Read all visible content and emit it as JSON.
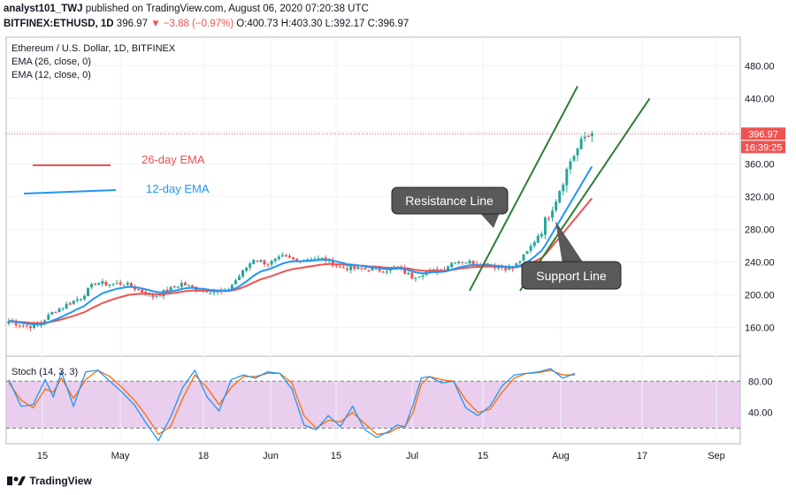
{
  "header": {
    "publisher": "analyst101_TWJ",
    "published_text": "published on TradingView.com, August 06, 2020 07:20:38 UTC",
    "symbol": "BITFINEX:ETHUSD, 1D",
    "last": "396.97",
    "change": "▼ −3.88 (−0.97%)",
    "ohlc": "O:400.73 H:403.30 L:392.17 C:396.97"
  },
  "legend": {
    "title": "Ethereum / U.S. Dollar, 1D, BITFINEX",
    "ema26": "EMA (26, close, 0)",
    "ema12": "EMA (12, close, 0)"
  },
  "annotations": {
    "ema26_label": "26-day EMA",
    "ema12_label": "12-day EMA",
    "resistance": "Resistance Line",
    "support": "Support Line"
  },
  "price_tag": {
    "price": "396.97",
    "countdown": "16:39:25"
  },
  "stoch": {
    "label": "Stoch (14, 3, 3)"
  },
  "footer": {
    "brand": "TradingView"
  },
  "colors": {
    "up": "#26a69a",
    "down": "#ef5350",
    "ema26": "#ef5350",
    "ema12": "#2196f3",
    "trend": "#2e7d32",
    "stoch_k": "#2196f3",
    "stoch_d": "#ff6d00",
    "stoch_band": "#e1bee7"
  },
  "chart_data": [
    {
      "type": "candlestick",
      "title": "Ethereum / U.S. Dollar, 1D, BITFINEX",
      "x_ticks": [
        "15",
        "May",
        "18",
        "Jun",
        "15",
        "Jul",
        "15",
        "Aug",
        "17",
        "Sep"
      ],
      "y_ticks": [
        160,
        200,
        240,
        280,
        320,
        360,
        400,
        440,
        480
      ],
      "ylim": [
        125,
        515
      ],
      "last_price": 396.97,
      "waypoints": [
        [
          0,
          168
        ],
        [
          4,
          162
        ],
        [
          8,
          162
        ],
        [
          12,
          178
        ],
        [
          16,
          188
        ],
        [
          20,
          197
        ],
        [
          24,
          215
        ],
        [
          28,
          213
        ],
        [
          32,
          214
        ],
        [
          36,
          206
        ],
        [
          40,
          198
        ],
        [
          44,
          205
        ],
        [
          48,
          214
        ],
        [
          52,
          207
        ],
        [
          56,
          205
        ],
        [
          60,
          202
        ],
        [
          64,
          223
        ],
        [
          68,
          244
        ],
        [
          72,
          238
        ],
        [
          76,
          246
        ],
        [
          80,
          242
        ],
        [
          84,
          245
        ],
        [
          88,
          243
        ],
        [
          92,
          234
        ],
        [
          96,
          232
        ],
        [
          100,
          231
        ],
        [
          104,
          230
        ],
        [
          108,
          233
        ],
        [
          112,
          222
        ],
        [
          116,
          228
        ],
        [
          120,
          230
        ],
        [
          124,
          242
        ],
        [
          128,
          240
        ],
        [
          132,
          238
        ],
        [
          136,
          234
        ],
        [
          140,
          232
        ],
        [
          144,
          252
        ],
        [
          148,
          280
        ],
        [
          152,
          318
        ],
        [
          156,
          364
        ],
        [
          160,
          393
        ],
        [
          162,
          397
        ]
      ],
      "ema26_end": 318,
      "ema12_end": 357,
      "trend_lines": [
        {
          "name": "resistance",
          "from": [
            128,
            205
          ],
          "to": [
            158,
            455
          ]
        },
        {
          "name": "support",
          "from": [
            142,
            205
          ],
          "to": [
            178,
            440
          ]
        }
      ]
    },
    {
      "type": "line",
      "title": "Stoch (14, 3, 3)",
      "y_ticks": [
        40,
        80
      ],
      "ylim": [
        0,
        112
      ],
      "band": [
        20,
        80
      ],
      "series_k_waypoints": [
        [
          0,
          82
        ],
        [
          3,
          48
        ],
        [
          6,
          50
        ],
        [
          9,
          82
        ],
        [
          11,
          60
        ],
        [
          13,
          92
        ],
        [
          16,
          48
        ],
        [
          19,
          92
        ],
        [
          22,
          94
        ],
        [
          25,
          80
        ],
        [
          28,
          66
        ],
        [
          31,
          50
        ],
        [
          34,
          26
        ],
        [
          37,
          4
        ],
        [
          40,
          34
        ],
        [
          43,
          72
        ],
        [
          46,
          94
        ],
        [
          49,
          60
        ],
        [
          52,
          42
        ],
        [
          55,
          82
        ],
        [
          58,
          88
        ],
        [
          61,
          84
        ],
        [
          64,
          92
        ],
        [
          67,
          90
        ],
        [
          70,
          70
        ],
        [
          73,
          24
        ],
        [
          76,
          18
        ],
        [
          79,
          36
        ],
        [
          82,
          22
        ],
        [
          85,
          48
        ],
        [
          88,
          18
        ],
        [
          91,
          8
        ],
        [
          94,
          16
        ],
        [
          96,
          24
        ],
        [
          98,
          22
        ],
        [
          100,
          50
        ],
        [
          102,
          84
        ],
        [
          104,
          86
        ],
        [
          107,
          78
        ],
        [
          110,
          80
        ],
        [
          113,
          46
        ],
        [
          116,
          36
        ],
        [
          119,
          48
        ],
        [
          122,
          74
        ],
        [
          125,
          88
        ],
        [
          128,
          90
        ],
        [
          131,
          92
        ],
        [
          134,
          96
        ],
        [
          137,
          84
        ],
        [
          140,
          90
        ]
      ],
      "series_d_waypoints": [
        [
          0,
          78
        ],
        [
          3,
          56
        ],
        [
          6,
          46
        ],
        [
          9,
          70
        ],
        [
          11,
          66
        ],
        [
          13,
          84
        ],
        [
          16,
          58
        ],
        [
          19,
          82
        ],
        [
          22,
          94
        ],
        [
          25,
          86
        ],
        [
          28,
          72
        ],
        [
          31,
          56
        ],
        [
          34,
          36
        ],
        [
          37,
          12
        ],
        [
          40,
          22
        ],
        [
          43,
          58
        ],
        [
          46,
          88
        ],
        [
          49,
          72
        ],
        [
          52,
          50
        ],
        [
          55,
          72
        ],
        [
          58,
          86
        ],
        [
          61,
          86
        ],
        [
          64,
          90
        ],
        [
          67,
          90
        ],
        [
          70,
          78
        ],
        [
          73,
          36
        ],
        [
          76,
          20
        ],
        [
          79,
          30
        ],
        [
          82,
          28
        ],
        [
          85,
          40
        ],
        [
          88,
          26
        ],
        [
          91,
          12
        ],
        [
          94,
          14
        ],
        [
          96,
          20
        ],
        [
          98,
          22
        ],
        [
          100,
          40
        ],
        [
          102,
          76
        ],
        [
          104,
          86
        ],
        [
          107,
          82
        ],
        [
          110,
          80
        ],
        [
          113,
          56
        ],
        [
          116,
          40
        ],
        [
          119,
          44
        ],
        [
          122,
          66
        ],
        [
          125,
          84
        ],
        [
          128,
          90
        ],
        [
          131,
          91
        ],
        [
          134,
          94
        ],
        [
          137,
          88
        ],
        [
          140,
          88
        ]
      ]
    }
  ]
}
